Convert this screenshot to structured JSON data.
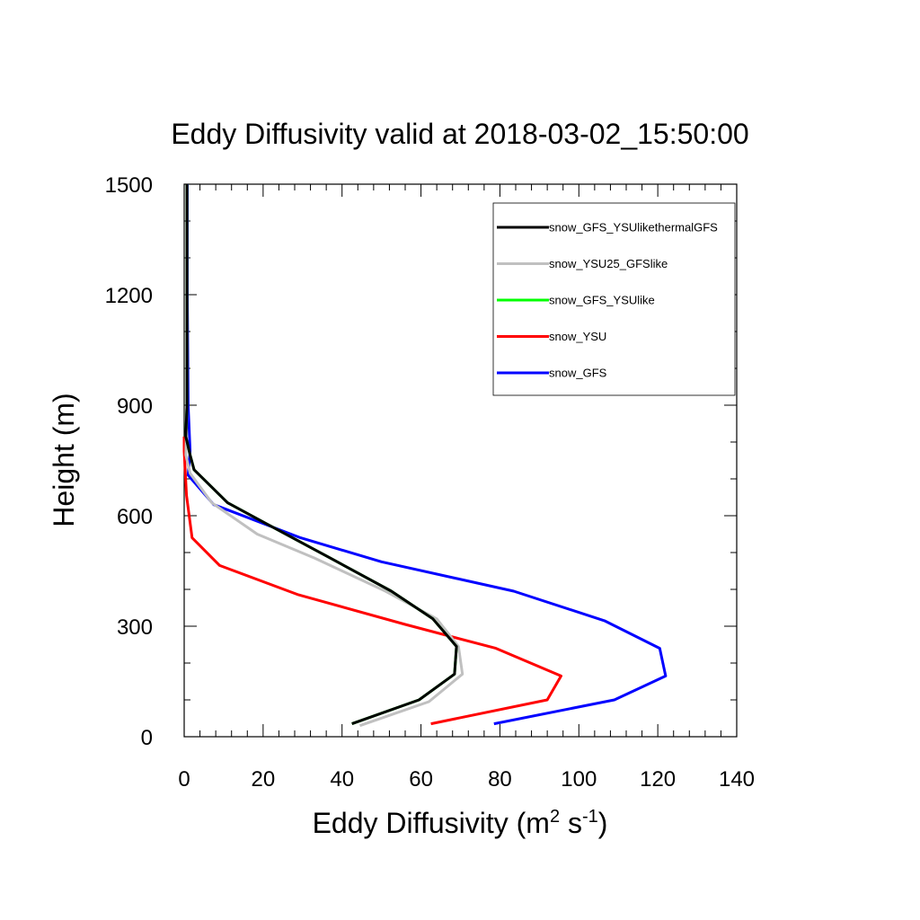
{
  "chart_data": {
    "type": "line",
    "title": "Eddy Diffusivity valid at 2018-03-02_15:50:00",
    "xlabel": {
      "base": "Eddy Diffusivity (m",
      "sup1": "2",
      "mid": " s",
      "sup2": "-1",
      "end": ")"
    },
    "ylabel": "Height (m)",
    "xlim": [
      0,
      140
    ],
    "ylim": [
      0,
      1500
    ],
    "x_ticks": [
      0,
      20,
      40,
      60,
      80,
      100,
      120,
      140
    ],
    "y_ticks": [
      0,
      300,
      600,
      900,
      1200,
      1500
    ],
    "x_tick_labels": [
      "0",
      "20",
      "40",
      "60",
      "80",
      "100",
      "120",
      "140"
    ],
    "y_tick_labels": [
      "0",
      "300",
      "600",
      "900",
      "1200",
      "1500"
    ],
    "legend_position": "top-right",
    "grid": false,
    "series": [
      {
        "name": "snow_GFS_YSUlikethermalGFS",
        "color": "#000000",
        "points": [
          [
            42.5,
            35
          ],
          [
            59.5,
            100
          ],
          [
            68.5,
            170
          ],
          [
            69,
            245
          ],
          [
            63,
            320
          ],
          [
            52.5,
            395
          ],
          [
            37,
            485
          ],
          [
            20.5,
            580
          ],
          [
            11,
            635
          ],
          [
            2.5,
            725
          ],
          [
            1.5,
            765
          ],
          [
            0.4,
            815
          ],
          [
            0.7,
            900
          ],
          [
            0.7,
            1200
          ],
          [
            0.7,
            1500
          ]
        ]
      },
      {
        "name": "snow_YSU25_GFSlike",
        "color": "#c0c0c0",
        "points": [
          [
            44.5,
            30
          ],
          [
            62,
            95
          ],
          [
            70.5,
            170
          ],
          [
            69.5,
            245
          ],
          [
            64,
            320
          ],
          [
            51,
            395
          ],
          [
            33,
            485
          ],
          [
            18.5,
            550
          ],
          [
            7,
            635
          ],
          [
            1.5,
            715
          ],
          [
            0.4,
            765
          ],
          [
            0.7,
            900
          ],
          [
            0.7,
            1200
          ],
          [
            0.7,
            1500
          ]
        ]
      },
      {
        "name": "snow_GFS_YSUlike",
        "color": "#00ff00",
        "points": [
          [
            42.5,
            35
          ],
          [
            59.5,
            100
          ],
          [
            68.5,
            170
          ],
          [
            69,
            245
          ],
          [
            63,
            320
          ],
          [
            52.5,
            395
          ],
          [
            37,
            485
          ],
          [
            20.5,
            580
          ],
          [
            11,
            635
          ],
          [
            2.5,
            725
          ],
          [
            1.5,
            765
          ],
          [
            0.4,
            815
          ],
          [
            0.7,
            900
          ],
          [
            0.7,
            1200
          ],
          [
            0.7,
            1500
          ]
        ]
      },
      {
        "name": "snow_YSU",
        "color": "#ff0000",
        "points": [
          [
            62.5,
            35
          ],
          [
            92,
            100
          ],
          [
            95.5,
            165
          ],
          [
            79,
            240
          ],
          [
            56,
            305
          ],
          [
            29,
            385
          ],
          [
            9,
            465
          ],
          [
            2,
            540
          ],
          [
            0.6,
            655
          ],
          [
            0,
            775
          ],
          [
            0,
            815
          ]
        ]
      },
      {
        "name": "snow_GFS",
        "color": "#0000ff",
        "points": [
          [
            78.5,
            35
          ],
          [
            109,
            100
          ],
          [
            122,
            165
          ],
          [
            120.5,
            240
          ],
          [
            106.5,
            315
          ],
          [
            83.5,
            395
          ],
          [
            50,
            475
          ],
          [
            29.5,
            540
          ],
          [
            10,
            620
          ],
          [
            7.5,
            630
          ],
          [
            1,
            710
          ],
          [
            1.5,
            775
          ],
          [
            1,
            900
          ],
          [
            0.8,
            1200
          ],
          [
            0.8,
            1500
          ]
        ]
      }
    ]
  }
}
